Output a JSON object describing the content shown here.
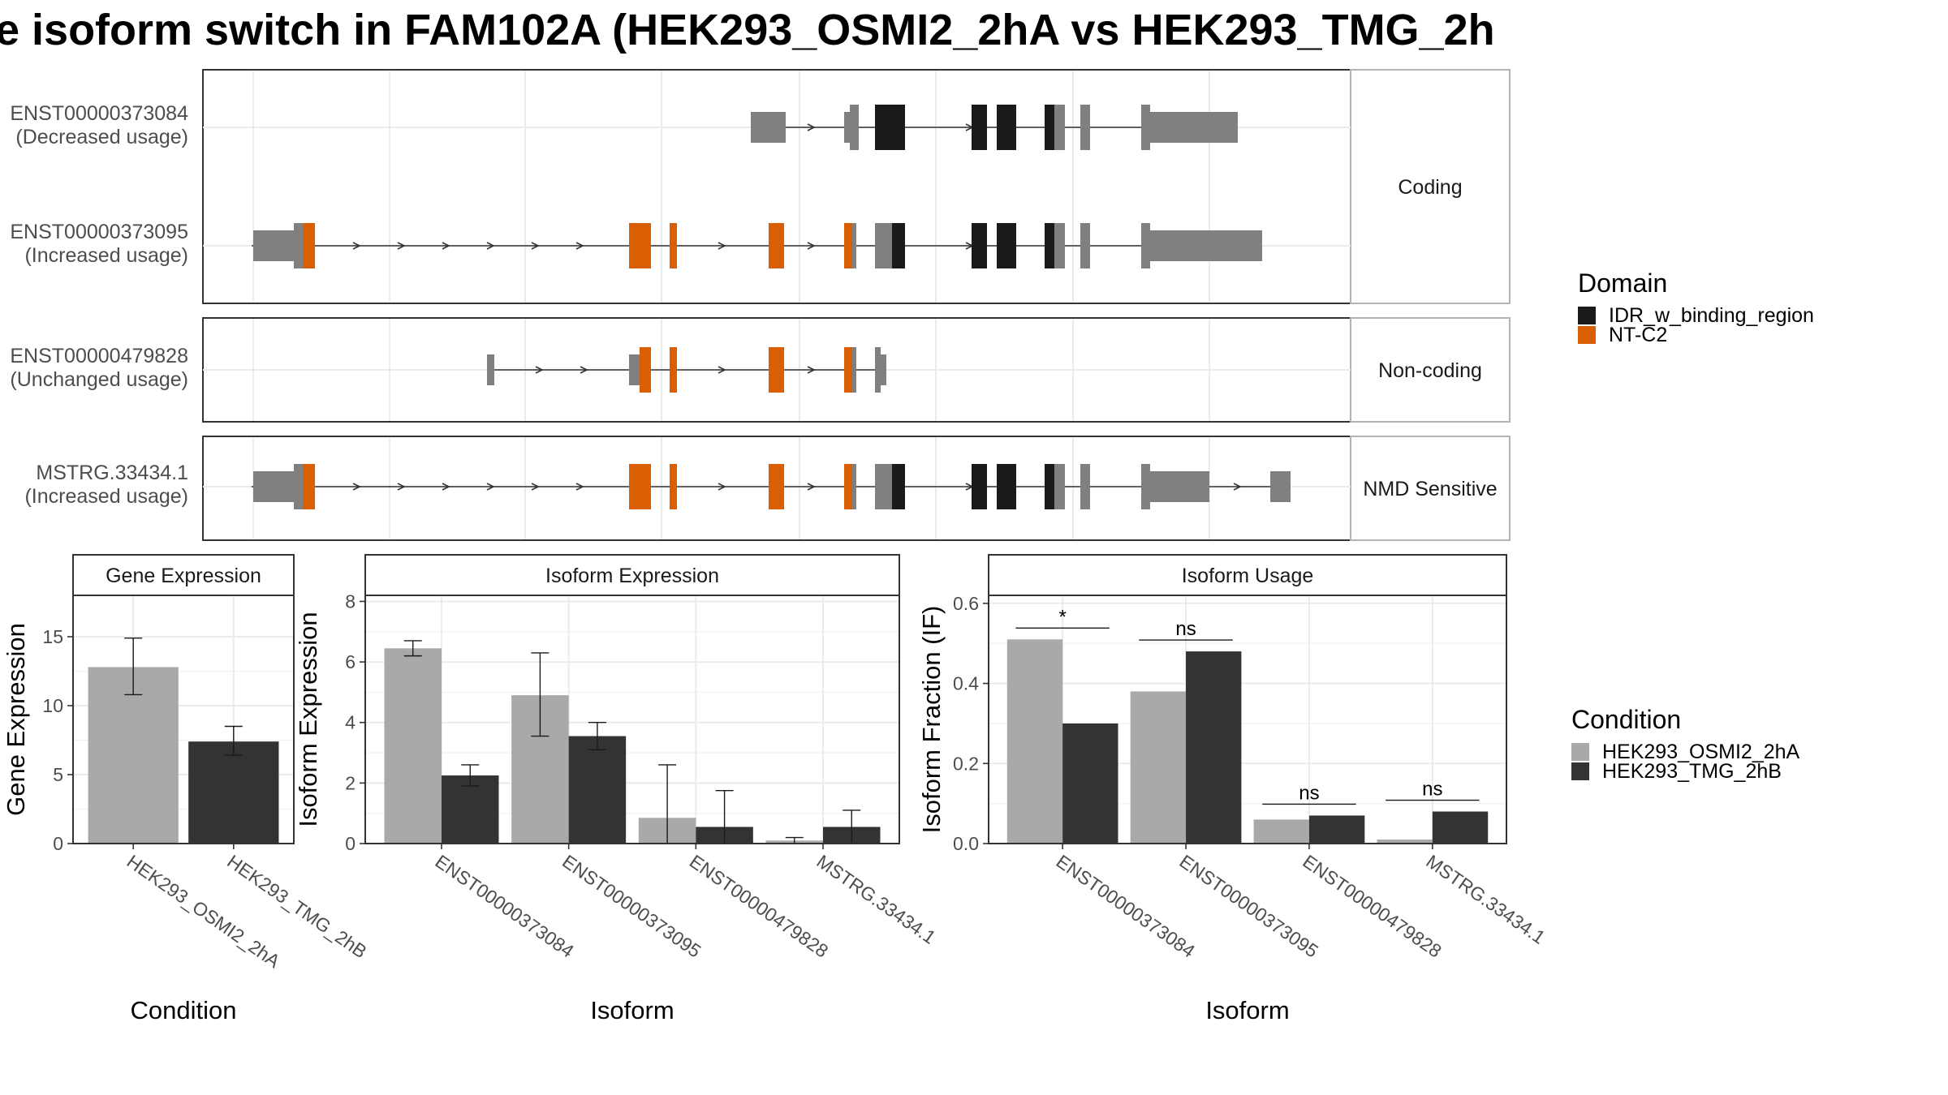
{
  "title": "e isoform switch in FAM102A (HEK293_OSMI2_2hA vs HEK293_TMG_2h",
  "colors": {
    "IDR_w_binding_region": "#1a1a1a",
    "NT_C2": "#d95f02",
    "exon_gray": "#808080",
    "cond_a": "#a9a9a9",
    "cond_b": "#333333",
    "panel_border": "#333333",
    "grid": "#ebebeb"
  },
  "gene_model": {
    "transcripts": [
      {
        "id": "ENST00000373084",
        "status": "(Decreased usage)",
        "group": "Coding"
      },
      {
        "id": "ENST00000373095",
        "status": "(Increased usage)",
        "group": "Coding"
      },
      {
        "id": "ENST00000479828",
        "status": "(Unchanged usage)",
        "group": "Non-coding"
      },
      {
        "id": "MSTRG.33434.1",
        "status": "(Increased usage)",
        "group": "NMD Sensitive"
      }
    ],
    "groups": [
      "Coding",
      "Non-coding",
      "NMD Sensitive"
    ]
  },
  "legend_domain": {
    "title": "Domain",
    "items": [
      {
        "label": "IDR_w_binding_region",
        "color": "#1a1a1a"
      },
      {
        "label": "NT-C2",
        "color": "#d95f02"
      }
    ]
  },
  "legend_condition": {
    "title": "Condition",
    "items": [
      {
        "label": "HEK293_OSMI2_2hA",
        "color": "#a9a9a9"
      },
      {
        "label": "HEK293_TMG_2hB",
        "color": "#333333"
      }
    ]
  },
  "chart_data": [
    {
      "type": "bar",
      "title": "Gene Expression",
      "xlabel": "Condition",
      "ylabel": "Gene Expression",
      "ylim": [
        0,
        18
      ],
      "yticks": [
        0,
        5,
        10,
        15
      ],
      "categories": [
        "HEK293_OSMI2_2hA",
        "HEK293_TMG_2hB"
      ],
      "values": [
        12.8,
        7.4
      ],
      "error_low": [
        10.8,
        6.4
      ],
      "error_high": [
        14.9,
        8.5
      ]
    },
    {
      "type": "bar",
      "title": "Isoform Expression",
      "xlabel": "Isoform",
      "ylabel": "Isoform Expression",
      "ylim": [
        0,
        8.2
      ],
      "yticks": [
        0,
        2,
        4,
        6,
        8
      ],
      "categories": [
        "ENST00000373084",
        "ENST00000373095",
        "ENST00000479828",
        "MSTRG.33434.1"
      ],
      "series": [
        {
          "name": "HEK293_OSMI2_2hA",
          "values": [
            6.45,
            4.9,
            0.85,
            0.1
          ],
          "error_low": [
            6.2,
            3.55,
            0.0,
            0.0
          ],
          "error_high": [
            6.7,
            6.3,
            2.6,
            0.2
          ]
        },
        {
          "name": "HEK293_TMG_2hB",
          "values": [
            2.25,
            3.55,
            0.55,
            0.55
          ],
          "error_low": [
            1.9,
            3.1,
            0.0,
            0.0
          ],
          "error_high": [
            2.6,
            4.0,
            1.75,
            1.1
          ]
        }
      ]
    },
    {
      "type": "bar",
      "title": "Isoform Usage",
      "xlabel": "Isoform",
      "ylabel": "Isoform Fraction (IF)",
      "ylim": [
        0,
        0.62
      ],
      "yticks": [
        0.0,
        0.2,
        0.4,
        0.6
      ],
      "ytick_labels": [
        "0.0",
        "0.2",
        "0.4",
        "0.6"
      ],
      "categories": [
        "ENST00000373084",
        "ENST00000373095",
        "ENST00000479828",
        "MSTRG.33434.1"
      ],
      "series": [
        {
          "name": "HEK293_OSMI2_2hA",
          "values": [
            0.51,
            0.38,
            0.06,
            0.01
          ]
        },
        {
          "name": "HEK293_TMG_2hB",
          "values": [
            0.3,
            0.48,
            0.07,
            0.08
          ]
        }
      ],
      "significance": [
        "*",
        "ns",
        "ns",
        "ns"
      ]
    }
  ]
}
